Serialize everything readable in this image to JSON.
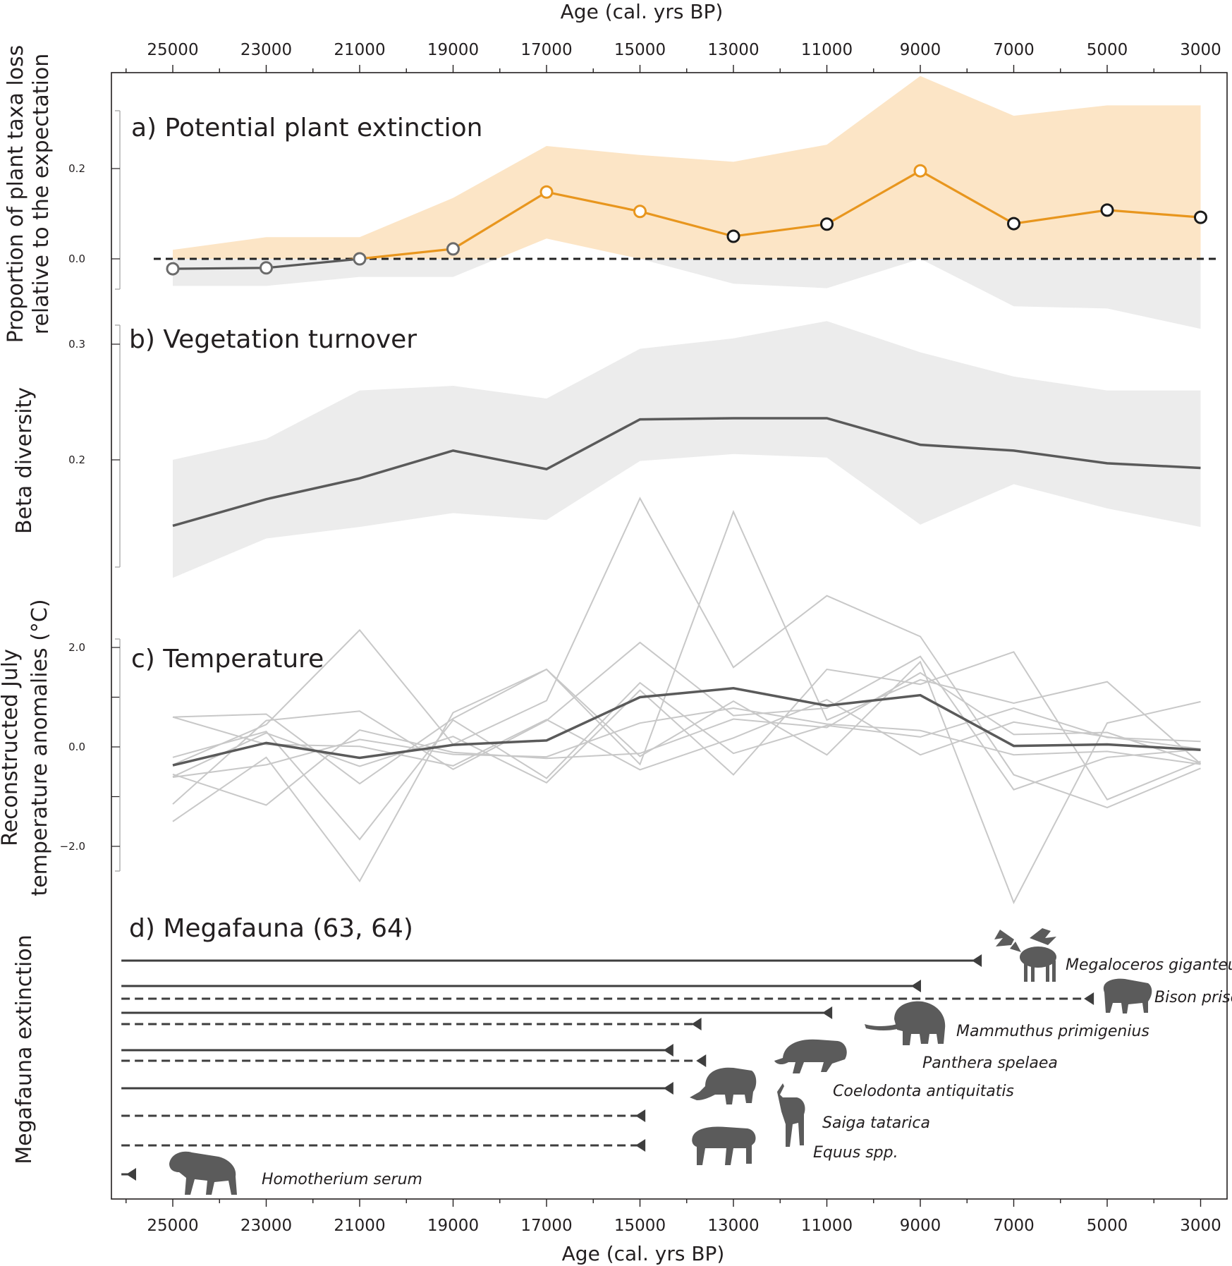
{
  "figure_axes": {
    "x_title_top": "Age (cal. yrs BP)",
    "x_title_bottom": "Age (cal. yrs BP)",
    "ticks": [
      25000,
      23000,
      21000,
      19000,
      17000,
      15000,
      13000,
      11000,
      9000,
      7000,
      5000,
      3000
    ],
    "tick_labels": [
      "25000",
      "23000",
      "21000",
      "19000",
      "17000",
      "15000",
      "13000",
      "11000",
      "9000",
      "7000",
      "5000",
      "3000"
    ]
  },
  "y_labels": {
    "a_line1": "Proportion of plant taxa loss",
    "a_line2": "relative to the expectation",
    "b": "Beta diversity",
    "c_line1": "Reconstructed July",
    "c_line2": "temperature anomalies (°C)",
    "d": "Megafauna extinction"
  },
  "chart_data": [
    {
      "panel": "a",
      "type": "line",
      "title": "a) Potential plant extinction",
      "ylabel": "Proportion of plant taxa loss relative to the expectation",
      "y_ticks": [
        "0.2",
        "0.0"
      ],
      "ylim": [
        -0.05,
        0.3
      ],
      "x": [
        25000,
        23000,
        21000,
        19000,
        17000,
        15000,
        13000,
        11000,
        9000,
        7000,
        5000,
        3000
      ],
      "values": [
        -0.022,
        -0.02,
        0.0,
        0.022,
        0.148,
        0.105,
        0.05,
        0.077,
        0.195,
        0.078,
        0.108,
        0.092
      ],
      "ci_lower": [
        -0.06,
        -0.06,
        -0.04,
        -0.04,
        0.045,
        0.0,
        -0.055,
        -0.065,
        0.0,
        -0.105,
        -0.11,
        -0.155
      ],
      "ci_upper": [
        0.02,
        0.048,
        0.048,
        0.135,
        0.25,
        0.23,
        0.215,
        0.253,
        0.405,
        0.317,
        0.34,
        0.34
      ],
      "reference_line": 0.0,
      "colors": {
        "above": "#e8961e",
        "below": "#595959",
        "band_above": "#fce5c6",
        "band_below": "#ececec",
        "ref": "#222222"
      }
    },
    {
      "panel": "b",
      "type": "line",
      "title": "b) Vegetation turnover",
      "ylabel": "Beta diversity",
      "y_ticks": [
        "0.3",
        "0.2"
      ],
      "ylim": [
        0.1,
        0.32
      ],
      "x": [
        25000,
        23000,
        21000,
        19000,
        17000,
        15000,
        13000,
        11000,
        9000,
        7000,
        5000,
        3000
      ],
      "values": [
        0.143,
        0.166,
        0.184,
        0.208,
        0.192,
        0.235,
        0.236,
        0.236,
        0.213,
        0.208,
        0.197,
        0.193
      ],
      "ci_lower": [
        0.098,
        0.132,
        0.142,
        0.154,
        0.148,
        0.199,
        0.205,
        0.202,
        0.144,
        0.179,
        0.158,
        0.142
      ],
      "ci_upper": [
        0.2,
        0.218,
        0.26,
        0.264,
        0.253,
        0.296,
        0.305,
        0.32,
        0.293,
        0.272,
        0.26,
        0.26
      ],
      "colors": {
        "line": "#5a5a5a",
        "band": "#ececec"
      }
    },
    {
      "panel": "c",
      "type": "line",
      "title": "c) Temperature",
      "ylabel": "Reconstructed July temperature anomalies (°C)",
      "y_ticks": [
        "2.0",
        "0.0",
        "−2.0"
      ],
      "ylim": [
        -2.5,
        2.5
      ],
      "x": [
        25000,
        23000,
        21000,
        19000,
        17000,
        15000,
        13000,
        11000,
        9000,
        7000,
        5000,
        3000
      ],
      "series": [
        {
          "name": "Mean",
          "values": [
            -0.37,
            0.08,
            -0.22,
            0.04,
            0.13,
            1.0,
            1.18,
            0.83,
            1.04,
            0.02,
            0.05,
            -0.06
          ]
        },
        {
          "name": "Record 1",
          "values": [
            0.6,
            0.66,
            -0.74,
            0.57,
            1.56,
            -0.35,
            4.73,
            0.54,
            1.35,
            0.88,
            1.31,
            -0.34
          ]
        },
        {
          "name": "Record 2",
          "values": [
            -0.36,
            0.45,
            2.35,
            0.05,
            0.93,
            5.0,
            1.6,
            3.04,
            2.22,
            -0.56,
            -1.22,
            -0.43
          ]
        },
        {
          "name": "Record 3",
          "values": [
            -1.5,
            -0.21,
            -2.7,
            0.69,
            1.56,
            -0.19,
            0.92,
            -0.16,
            1.71,
            -3.13,
            0.48,
            0.91
          ]
        },
        {
          "name": "Record 4",
          "values": [
            -1.15,
            0.53,
            0.72,
            -0.45,
            0.53,
            2.1,
            0.63,
            0.78,
            1.82,
            -0.86,
            -0.21,
            -0.05
          ]
        },
        {
          "name": "Record 5",
          "values": [
            -0.6,
            0.28,
            -0.39,
            0.21,
            -0.72,
            1.14,
            -0.56,
            1.56,
            1.26,
            1.91,
            -1.06,
            -0.29
          ]
        },
        {
          "name": "Record 6",
          "values": [
            -0.21,
            0.31,
            -1.86,
            0.54,
            -0.63,
            1.29,
            -0.13,
            0.43,
            0.2,
            0.78,
            0.19,
            0.11
          ]
        },
        {
          "name": "Record 7",
          "values": [
            -0.61,
            -0.36,
            0.15,
            -0.15,
            -0.2,
            0.48,
            0.78,
            0.46,
            0.33,
            -0.16,
            -0.09,
            -0.35
          ]
        },
        {
          "name": "Record 8",
          "values": [
            -0.55,
            -1.17,
            0.34,
            -0.11,
            -0.23,
            -0.13,
            0.56,
            0.39,
            1.49,
            0.25,
            0.29,
            -0.33
          ]
        },
        {
          "name": "Record 9",
          "values": [
            0.6,
            0.05,
            0.01,
            -0.38,
            0.55,
            -0.46,
            0.18,
            0.95,
            -0.16,
            0.5,
            0.2,
            -0.04
          ]
        }
      ],
      "colors": {
        "mean": "#5a5a5a",
        "records": "#c8c8c8"
      }
    },
    {
      "panel": "d",
      "type": "timeline",
      "title": "d) Megafauna (63, 64)",
      "ylabel": "Megafauna extinction",
      "line_start": 26100,
      "species": [
        {
          "name": "Megaloceros giganteus",
          "extinction": [
            {
              "end": 7700,
              "style": "solid"
            }
          ]
        },
        {
          "name": "Bison priscus",
          "extinction": [
            {
              "end": 9000,
              "style": "solid"
            },
            {
              "end": 5300,
              "style": "dashed"
            }
          ]
        },
        {
          "name": "Mammuthus primigenius",
          "extinction": [
            {
              "end": 10900,
              "style": "solid"
            },
            {
              "end": 13700,
              "style": "dashed"
            }
          ]
        },
        {
          "name": "Panthera spelaea",
          "extinction": [
            {
              "end": 14300,
              "style": "solid"
            },
            {
              "end": 13600,
              "style": "dashed"
            }
          ]
        },
        {
          "name": "Coelodonta antiquitatis",
          "extinction": [
            {
              "end": 14300,
              "style": "solid"
            }
          ]
        },
        {
          "name": "Saiga tatarica",
          "extinction": [
            {
              "end": 14900,
              "style": "dashed"
            }
          ]
        },
        {
          "name": "Equus spp.",
          "extinction": [
            {
              "end": 14900,
              "style": "dashed"
            }
          ]
        },
        {
          "name": "Homotherium serum",
          "extinction": [
            {
              "end": 25800,
              "style": "solid"
            }
          ]
        }
      ],
      "colors": {
        "line": "#3e3e3e",
        "silhouette": "#5b5b5b"
      }
    }
  ]
}
